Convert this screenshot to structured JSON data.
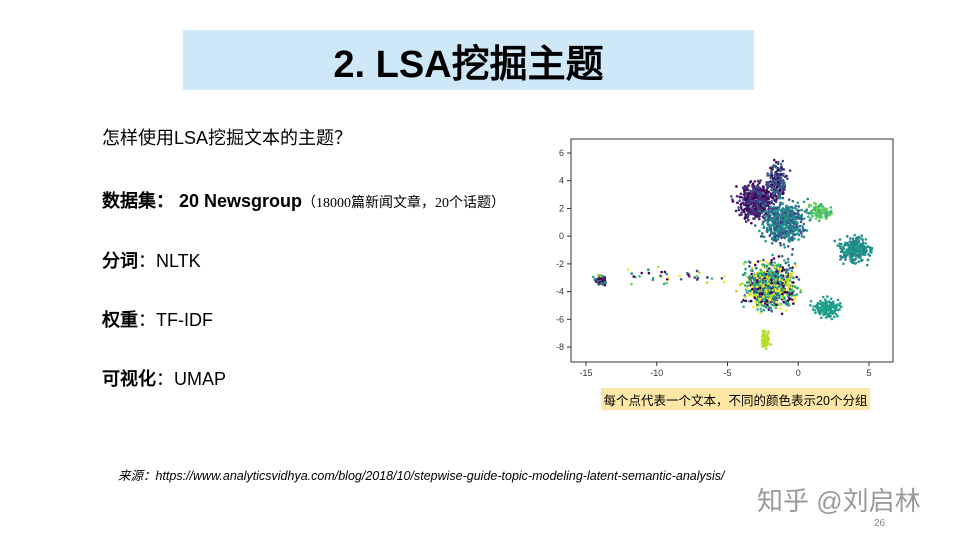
{
  "title": "2. LSA挖掘主题",
  "question": "怎样使用LSA挖掘文本的主题？",
  "dataset": {
    "label": "数据集：",
    "name": "20 Newsgroup",
    "detail": "（18000篇新闻文章，20个话题）"
  },
  "tokenize": {
    "label": "分词",
    "value": "：NLTK"
  },
  "weight": {
    "label": "权重",
    "value": "：TF-IDF"
  },
  "visual": {
    "label": "可视化",
    "value": "：UMAP"
  },
  "figure": {
    "caption": "每个点代表一个文本，不同的颜色表示20个分组",
    "x_ticks": [
      "-15",
      "-10",
      "-5",
      "0",
      "5"
    ],
    "y_ticks": [
      "6",
      "4",
      "2",
      "0",
      "-2",
      "-4",
      "-6",
      "-8"
    ],
    "xlim": [
      -15.4,
      6.5
    ],
    "ylim": [
      -9,
      7
    ]
  },
  "source": "来源：https://www.analyticsvidhya.com/blog/2018/10/stepwise-guide-topic-modeling-latent-semantic-analysis/",
  "watermark": "知乎 @刘启林",
  "page_number": "26"
}
